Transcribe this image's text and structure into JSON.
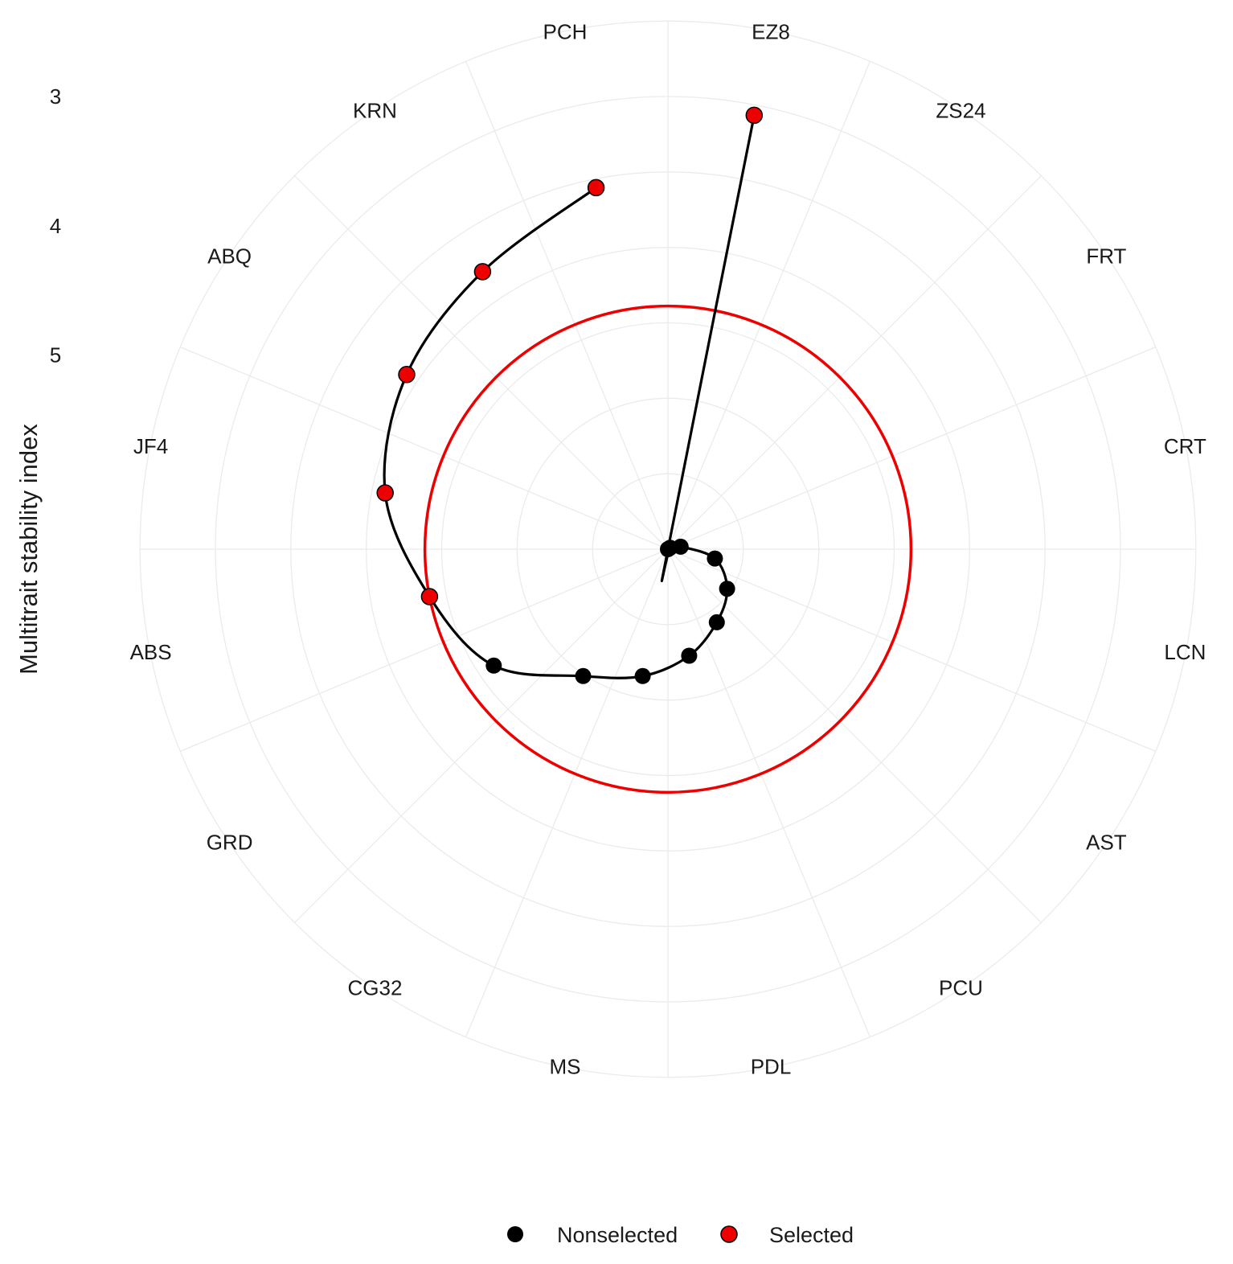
{
  "chart_data": {
    "type": "radar",
    "ylabel": "Multitrait stability index",
    "ticks": [
      3,
      4,
      5
    ],
    "y_scale": "reversed",
    "grid": true,
    "legend_position": "bottom",
    "threshold": {
      "value": 4.62,
      "color": "#ee0000"
    },
    "categories": [
      "EZ8",
      "ZS24",
      "FRT",
      "CRT",
      "LCN",
      "AST",
      "PCU",
      "PDL",
      "MS",
      "CG32",
      "GRD",
      "ABS",
      "JF4",
      "ABQ",
      "KRN",
      "PCH"
    ],
    "values": [
      3.08,
      6.5,
      6.48,
      6.4,
      6.13,
      5.95,
      5.82,
      5.66,
      5.5,
      5.32,
      4.88,
      4.62,
      4.27,
      4.07,
      3.92,
      3.65
    ],
    "groups": [
      "Selected",
      "Nonselected",
      "Nonselected",
      "Nonselected",
      "Nonselected",
      "Nonselected",
      "Nonselected",
      "Nonselected",
      "Nonselected",
      "Nonselected",
      "Nonselected",
      "Selected",
      "Selected",
      "Selected",
      "Selected",
      "Selected"
    ],
    "series": [
      {
        "name": "Nonselected",
        "color": "#000000"
      },
      {
        "name": "Selected",
        "color": "#ee0000"
      }
    ]
  }
}
